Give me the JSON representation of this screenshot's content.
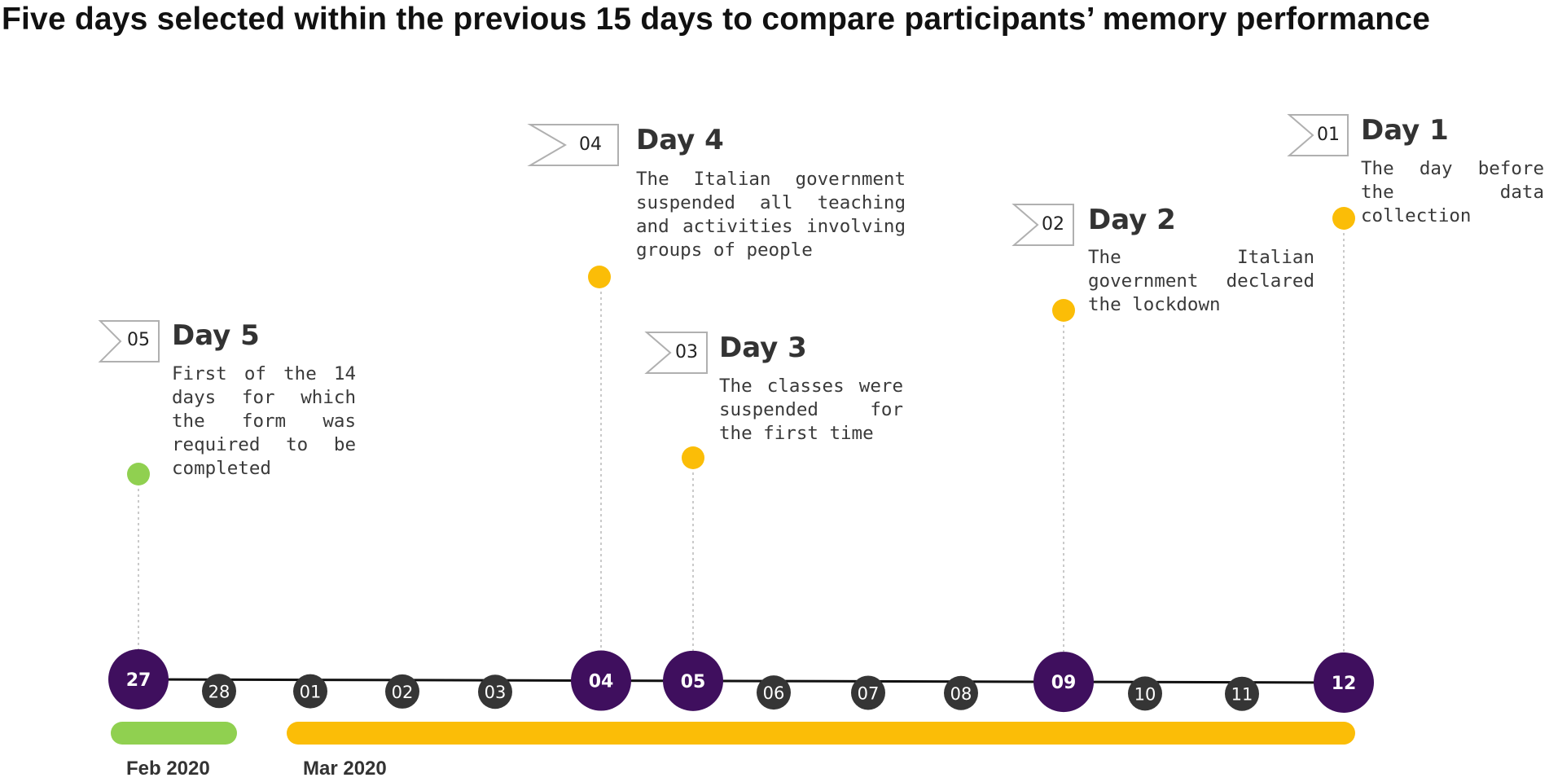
{
  "title": "Five days selected within the previous 15 days to compare participants’ memory performance",
  "colors": {
    "purple": "#3f0f5e",
    "dark_gray": "#353535",
    "yellow": "#fbbd07",
    "green": "#90d050",
    "axis": "#111111"
  },
  "timeline": {
    "days": [
      {
        "label": "27",
        "highlight": true
      },
      {
        "label": "28",
        "highlight": false
      },
      {
        "label": "01",
        "highlight": false
      },
      {
        "label": "02",
        "highlight": false
      },
      {
        "label": "03",
        "highlight": false
      },
      {
        "label": "04",
        "highlight": true
      },
      {
        "label": "05",
        "highlight": true
      },
      {
        "label": "06",
        "highlight": false
      },
      {
        "label": "07",
        "highlight": false
      },
      {
        "label": "08",
        "highlight": false
      },
      {
        "label": "09",
        "highlight": true
      },
      {
        "label": "10",
        "highlight": false
      },
      {
        "label": "11",
        "highlight": false
      },
      {
        "label": "12",
        "highlight": true
      }
    ],
    "months": [
      {
        "label": "Feb 2020",
        "color": "green"
      },
      {
        "label": "Mar 2020",
        "color": "yellow"
      }
    ]
  },
  "events": [
    {
      "number": "05",
      "heading": "Day 5",
      "description": "First of the 14 days for which the form was required to be completed",
      "day": "27",
      "marker_color": "green"
    },
    {
      "number": "04",
      "heading": "Day 4",
      "description": "The Italian government suspended all teaching and activities involving groups of people",
      "day": "04",
      "marker_color": "yellow"
    },
    {
      "number": "03",
      "heading": "Day 3",
      "description": "The classes were suspended for the first time",
      "day": "05",
      "marker_color": "yellow"
    },
    {
      "number": "02",
      "heading": "Day 2",
      "description": "The Italian government declared the lockdown",
      "day": "09",
      "marker_color": "yellow"
    },
    {
      "number": "01",
      "heading": "Day 1",
      "description": "The day before the data collection",
      "day": "12",
      "marker_color": "yellow"
    }
  ]
}
